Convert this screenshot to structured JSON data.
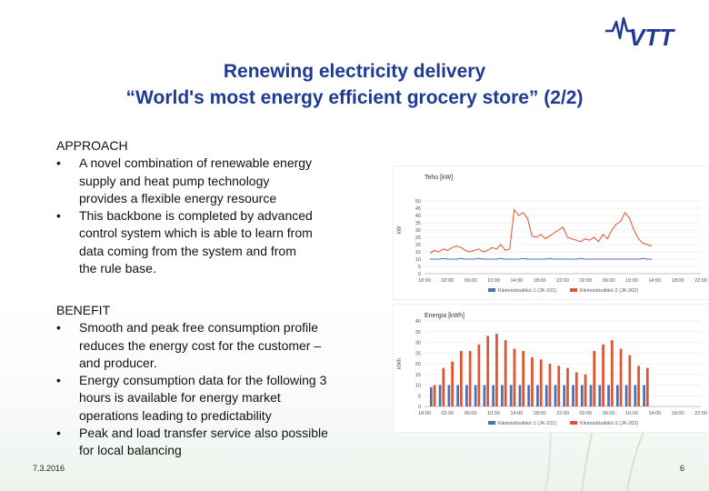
{
  "title": {
    "line1": "Renewing electricity delivery",
    "line2": "“World's most energy efficient grocery store” (2/2)"
  },
  "approach": {
    "heading": "APPROACH",
    "bullets": [
      {
        "lines": [
          "A novel combination of  renewable energy",
          "supply and heat pump technology",
          "provides a flexible energy resource"
        ]
      },
      {
        "lines": [
          "This backbone is  completed by advanced",
          "control system which is able to learn from",
          "data coming from the system and from",
          "the rule base."
        ]
      }
    ]
  },
  "benefit": {
    "heading": "BENEFIT",
    "bullets": [
      {
        "lines": [
          "Smooth and peak free consumption profile",
          "reduces the energy cost for the customer –",
          "and producer."
        ]
      },
      {
        "lines": [
          "Energy consumption data for the following 3",
          "hours is available for energy market",
          "operations leading to predictability"
        ]
      },
      {
        "lines": [
          "Peak and load transfer service  also possible",
          "for local balancing"
        ]
      }
    ]
  },
  "bullet_char": "•",
  "footer": {
    "date": "7.3.2016",
    "page": "6"
  },
  "logo": {
    "text": "VTT",
    "color": "#1f3a93",
    "icon": "vtt-wave-logo"
  },
  "colors": {
    "title": "#1f3a93",
    "series_blue": "#4a6fb5",
    "series_red": "#e0532f"
  },
  "chart_data": [
    {
      "type": "line",
      "title": "Teho [kW]",
      "ylabel": "kW",
      "ylim": [
        0,
        60
      ],
      "yticks": [
        "0",
        "5",
        "10",
        "15",
        "20",
        "25",
        "30",
        "35",
        "40",
        "45",
        "50"
      ],
      "xticks": [
        "18:00",
        "02:00",
        "06:00",
        "10:00",
        "14:00",
        "18:00",
        "22:00",
        "02:00",
        "06:00",
        "10:00",
        "14:00",
        "18:00",
        "22:00"
      ],
      "series": [
        {
          "name": "Kiinteistösähkö 1 (JK-101)",
          "color": "#4a6fb5",
          "values": [
            10,
            10,
            10,
            10.5,
            10,
            10,
            10,
            10.5,
            10,
            10,
            10,
            10.5,
            10,
            10,
            10,
            10,
            10.5,
            10,
            10,
            10,
            10,
            10.5,
            10,
            10,
            10,
            10,
            10,
            10.5,
            10,
            10,
            10,
            10,
            10,
            10,
            10.5,
            10,
            10,
            10,
            10,
            10,
            10,
            10,
            10,
            10,
            10,
            10,
            10,
            10,
            10.5,
            10,
            10
          ]
        },
        {
          "name": "Kiinteistösähkö 2 (JK-202)",
          "color": "#e0532f",
          "values": [
            14,
            16,
            15,
            17,
            16,
            18,
            19,
            18,
            16,
            15,
            16,
            17,
            15,
            16,
            18,
            17,
            20,
            16,
            17,
            44,
            40,
            42,
            38,
            26,
            25,
            27,
            24,
            26,
            28,
            30,
            32,
            25,
            24,
            23,
            22,
            24,
            23,
            25,
            22,
            27,
            24,
            30,
            34,
            36,
            42,
            38,
            30,
            24,
            21,
            20,
            19
          ]
        }
      ]
    },
    {
      "type": "bar",
      "title": "Energia [kWh]",
      "ylabel": "kWh",
      "ylim": [
        0,
        40
      ],
      "yticks": [
        "0",
        "5",
        "10",
        "15",
        "20",
        "25",
        "30",
        "35",
        "40"
      ],
      "xticks": [
        "18:00",
        "02:00",
        "06:00",
        "10:00",
        "14:00",
        "18:00",
        "22:00",
        "02:00",
        "06:00",
        "10:00",
        "14:00",
        "18:00",
        "22:00"
      ],
      "categories": [
        "1",
        "2",
        "3",
        "4",
        "5",
        "6",
        "7",
        "8",
        "9",
        "10",
        "11",
        "12",
        "13",
        "14",
        "15",
        "16",
        "17",
        "18",
        "19",
        "20",
        "21",
        "22",
        "23",
        "24",
        "25"
      ],
      "series": [
        {
          "name": "Kiinteistösähkö 1 (JK-101)",
          "color": "#4a6fb5",
          "values": [
            9,
            10,
            10,
            10,
            10,
            10,
            10,
            10,
            10,
            10,
            10,
            10,
            10,
            10,
            10,
            10,
            10,
            10,
            10,
            10,
            10,
            10,
            10,
            10,
            10
          ]
        },
        {
          "name": "Kiinteistösähkö 2 (JK-202)",
          "color": "#e0532f",
          "values": [
            10,
            18,
            21,
            26,
            26,
            29,
            33,
            34,
            31,
            27,
            26,
            23,
            22,
            20,
            19,
            18,
            16,
            15,
            26,
            29,
            31,
            27,
            24,
            19,
            18
          ]
        }
      ]
    }
  ]
}
